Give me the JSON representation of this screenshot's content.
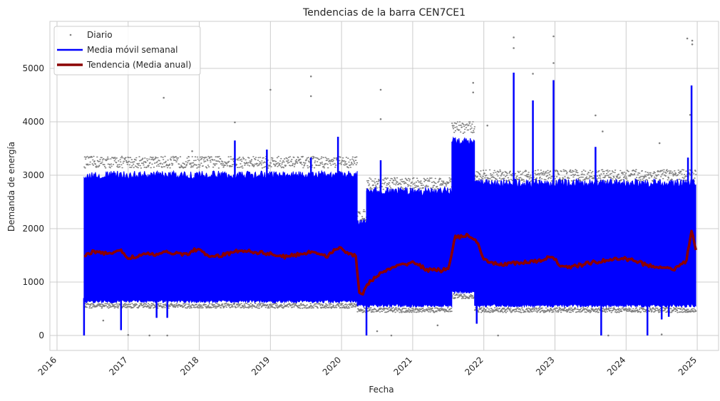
{
  "chart_data": {
    "type": "line",
    "title": "Tendencias de la barra CEN7CE1",
    "xlabel": "Fecha",
    "ylabel": "Demanda de energía",
    "xlim": [
      2015.9,
      2025.3
    ],
    "ylim": [
      -280,
      5880
    ],
    "x_ticks": [
      "2016",
      "2017",
      "2018",
      "2019",
      "2020",
      "2021",
      "2022",
      "2023",
      "2024",
      "2025"
    ],
    "y_ticks": [
      0,
      1000,
      2000,
      3000,
      4000,
      5000
    ],
    "grid": true,
    "legend_position": "top-left",
    "colors": {
      "daily": "#808080",
      "weekly": "#0000ff",
      "annual": "#8b0000",
      "grid": "#cccccc"
    },
    "series": [
      {
        "name": "Diario",
        "style": "scatter",
        "segments": [
          {
            "x": [
              2016.38,
              2020.22
            ],
            "low": 600,
            "high": 3200
          },
          {
            "x": [
              2020.22,
              2020.35
            ],
            "low": 520,
            "high": 2200
          },
          {
            "x": [
              2020.35,
              2021.55
            ],
            "low": 520,
            "high": 2800
          },
          {
            "x": [
              2021.55,
              2021.87
            ],
            "low": 780,
            "high": 3850
          },
          {
            "x": [
              2021.87,
              2024.98
            ],
            "low": 520,
            "high": 2950
          }
        ],
        "outliers": [
          {
            "x": 2017.5,
            "y": 4450
          },
          {
            "x": 2017.9,
            "y": 3450
          },
          {
            "x": 2018.5,
            "y": 3990
          },
          {
            "x": 2019.0,
            "y": 4600
          },
          {
            "x": 2019.57,
            "y": 4850
          },
          {
            "x": 2019.57,
            "y": 4480
          },
          {
            "x": 2020.55,
            "y": 4600
          },
          {
            "x": 2020.55,
            "y": 4050
          },
          {
            "x": 2021.85,
            "y": 4730
          },
          {
            "x": 2021.85,
            "y": 4550
          },
          {
            "x": 2022.05,
            "y": 3930
          },
          {
            "x": 2022.42,
            "y": 5580
          },
          {
            "x": 2022.42,
            "y": 5380
          },
          {
            "x": 2022.69,
            "y": 4900
          },
          {
            "x": 2022.98,
            "y": 5600
          },
          {
            "x": 2022.98,
            "y": 5100
          },
          {
            "x": 2023.57,
            "y": 4120
          },
          {
            "x": 2023.67,
            "y": 3820
          },
          {
            "x": 2024.47,
            "y": 3600
          },
          {
            "x": 2024.86,
            "y": 5560
          },
          {
            "x": 2024.93,
            "y": 5520
          },
          {
            "x": 2024.93,
            "y": 5450
          },
          {
            "x": 2024.9,
            "y": 4130
          },
          {
            "x": 2017.0,
            "y": 10
          },
          {
            "x": 2017.3,
            "y": 0
          },
          {
            "x": 2017.55,
            "y": 0
          },
          {
            "x": 2020.5,
            "y": 80
          },
          {
            "x": 2020.7,
            "y": 0
          },
          {
            "x": 2021.35,
            "y": 190
          },
          {
            "x": 2022.2,
            "y": 0
          },
          {
            "x": 2023.75,
            "y": 0
          },
          {
            "x": 2024.5,
            "y": 20
          },
          {
            "x": 2016.65,
            "y": 280
          }
        ]
      },
      {
        "name": "Media móvil semanal",
        "style": "band",
        "segments": [
          {
            "x": [
              2016.38,
              2020.22
            ],
            "low": 640,
            "high": 3000
          },
          {
            "x": [
              2020.22,
              2020.35
            ],
            "low": 560,
            "high": 2100
          },
          {
            "x": [
              2020.35,
              2021.55
            ],
            "low": 560,
            "high": 2700
          },
          {
            "x": [
              2021.55,
              2021.87
            ],
            "low": 820,
            "high": 3650
          },
          {
            "x": [
              2021.87,
              2024.98
            ],
            "low": 560,
            "high": 2850
          }
        ],
        "spikes": [
          {
            "x": 2018.5,
            "y": 3650
          },
          {
            "x": 2018.95,
            "y": 3480
          },
          {
            "x": 2019.57,
            "y": 3330
          },
          {
            "x": 2019.95,
            "y": 3720
          },
          {
            "x": 2020.55,
            "y": 3280
          },
          {
            "x": 2022.42,
            "y": 4920
          },
          {
            "x": 2022.69,
            "y": 4400
          },
          {
            "x": 2022.98,
            "y": 4780
          },
          {
            "x": 2023.57,
            "y": 3530
          },
          {
            "x": 2024.87,
            "y": 3330
          },
          {
            "x": 2024.92,
            "y": 4680
          }
        ],
        "dips": [
          {
            "x": 2016.38,
            "y": 0
          },
          {
            "x": 2016.9,
            "y": 100
          },
          {
            "x": 2017.4,
            "y": 330
          },
          {
            "x": 2017.55,
            "y": 330
          },
          {
            "x": 2020.35,
            "y": 0
          },
          {
            "x": 2021.9,
            "y": 220
          },
          {
            "x": 2023.65,
            "y": 0
          },
          {
            "x": 2024.3,
            "y": 0
          },
          {
            "x": 2024.5,
            "y": 300
          },
          {
            "x": 2024.6,
            "y": 350
          }
        ]
      },
      {
        "name": "Tendencia (Media anual)",
        "style": "line",
        "x": [
          2016.38,
          2016.5,
          2016.7,
          2016.9,
          2017.0,
          2017.2,
          2017.4,
          2017.6,
          2017.8,
          2017.95,
          2018.2,
          2018.4,
          2018.6,
          2018.8,
          2019.0,
          2019.2,
          2019.4,
          2019.6,
          2019.8,
          2019.95,
          2020.1,
          2020.2,
          2020.25,
          2020.3,
          2020.4,
          2020.6,
          2020.8,
          2021.0,
          2021.2,
          2021.4,
          2021.5,
          2021.6,
          2021.8,
          2021.9,
          2022.0,
          2022.2,
          2022.4,
          2022.6,
          2022.8,
          2022.95,
          2023.1,
          2023.3,
          2023.5,
          2023.7,
          2023.9,
          2024.1,
          2024.3,
          2024.5,
          2024.7,
          2024.85,
          2024.92,
          2024.98
        ],
        "y": [
          1500,
          1560,
          1540,
          1580,
          1450,
          1510,
          1520,
          1560,
          1510,
          1610,
          1460,
          1530,
          1600,
          1560,
          1530,
          1470,
          1520,
          1570,
          1490,
          1640,
          1540,
          1500,
          800,
          780,
          1020,
          1200,
          1300,
          1380,
          1230,
          1220,
          1260,
          1840,
          1870,
          1760,
          1400,
          1330,
          1350,
          1370,
          1390,
          1500,
          1270,
          1300,
          1360,
          1400,
          1440,
          1420,
          1310,
          1280,
          1250,
          1400,
          1980,
          1600
        ]
      }
    ]
  }
}
